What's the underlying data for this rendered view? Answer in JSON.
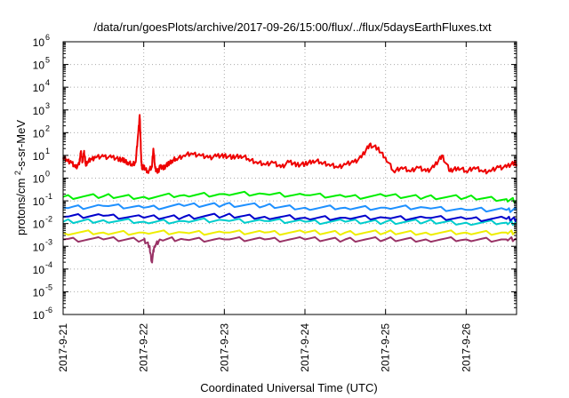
{
  "chart_data": {
    "type": "line",
    "title": "/data/run/goesPlots/archive/2017-09-26/15:00/flux/../flux/5daysEarthFluxes.txt",
    "xlabel": "Coordinated Universal Time (UTC)",
    "ylabel": "protons/cm²-s-sr-MeV",
    "y_scale": "log",
    "ylim": [
      1e-06,
      1000000.0
    ],
    "y_ticks": [
      {
        "value": 1e-06,
        "base": "10",
        "exp": "-6"
      },
      {
        "value": 1e-05,
        "base": "10",
        "exp": "-5"
      },
      {
        "value": 0.0001,
        "base": "10",
        "exp": "-4"
      },
      {
        "value": 0.001,
        "base": "10",
        "exp": "-3"
      },
      {
        "value": 0.01,
        "base": "10",
        "exp": "-2"
      },
      {
        "value": 0.1,
        "base": "10",
        "exp": "-1"
      },
      {
        "value": 1,
        "base": "10",
        "exp": "0"
      },
      {
        "value": 10,
        "base": "10",
        "exp": "1"
      },
      {
        "value": 100,
        "base": "10",
        "exp": "2"
      },
      {
        "value": 1000,
        "base": "10",
        "exp": "3"
      },
      {
        "value": 10000,
        "base": "10",
        "exp": "4"
      },
      {
        "value": 100000,
        "base": "10",
        "exp": "5"
      },
      {
        "value": 1000000,
        "base": "10",
        "exp": "6"
      }
    ],
    "xlim": [
      "2017-09-21 00:00",
      "2017-09-26 15:00"
    ],
    "x_ticks": [
      "2017-9-21",
      "2017-9-22",
      "2017-9-23",
      "2017-9-24",
      "2017-9-25",
      "2017-9-26"
    ],
    "grid": true,
    "series": [
      {
        "color": "#ee0000",
        "x": [
          0,
          0.05,
          0.1,
          0.15,
          0.2,
          0.22,
          0.24,
          0.26,
          0.28,
          0.3,
          0.35,
          0.4,
          0.5,
          0.6,
          0.7,
          0.75,
          0.8,
          0.85,
          0.9,
          0.93,
          0.95,
          0.96,
          0.97,
          0.98,
          1.0,
          1.05,
          1.1,
          1.12,
          1.14,
          1.16,
          1.18,
          1.2,
          1.25,
          1.3,
          1.35,
          1.4,
          1.5,
          1.6,
          1.7,
          1.8,
          1.9,
          2.0,
          2.1,
          2.2,
          2.3,
          2.4,
          2.5,
          2.6,
          2.7,
          2.8,
          2.9,
          3.0,
          3.1,
          3.2,
          3.3,
          3.4,
          3.5,
          3.6,
          3.7,
          3.8,
          3.9,
          4.0,
          4.1,
          4.2,
          4.3,
          4.4,
          4.5,
          4.6,
          4.7,
          4.8,
          4.9,
          5.0,
          5.1,
          5.2,
          5.3,
          5.4,
          5.5,
          5.6,
          5.625
        ],
        "y": [
          8,
          6,
          5,
          3,
          4,
          15,
          5,
          16,
          4,
          5,
          7,
          8,
          9,
          8,
          7,
          6,
          5,
          4,
          5,
          80,
          600,
          60,
          5,
          3,
          3,
          2,
          3,
          20,
          3,
          2,
          2,
          3,
          3,
          4,
          6,
          7,
          10,
          12,
          10,
          8,
          9,
          10,
          8,
          10,
          7,
          5,
          4,
          5,
          3,
          5,
          4,
          4,
          6,
          5,
          4,
          3,
          4,
          5,
          8,
          30,
          20,
          8,
          2,
          3,
          2,
          3,
          2,
          3,
          10,
          2,
          3,
          2,
          3,
          2,
          2,
          3,
          3,
          5,
          4
        ]
      },
      {
        "color": "#00ee00",
        "x": [
          0,
          0.5,
          1.0,
          1.5,
          2.0,
          2.5,
          3.0,
          3.5,
          4.0,
          4.5,
          5.0,
          5.5,
          5.625
        ],
        "y": [
          0.15,
          0.16,
          0.15,
          0.18,
          0.2,
          0.2,
          0.18,
          0.15,
          0.16,
          0.15,
          0.14,
          0.12,
          0.1
        ]
      },
      {
        "color": "#1e90ff",
        "x": [
          0,
          0.5,
          1.0,
          1.5,
          2.0,
          2.5,
          3.0,
          3.5,
          4.0,
          4.5,
          5.0,
          5.5,
          5.625
        ],
        "y": [
          0.05,
          0.06,
          0.05,
          0.06,
          0.07,
          0.06,
          0.05,
          0.05,
          0.05,
          0.05,
          0.04,
          0.04,
          0.04
        ]
      },
      {
        "color": "#00cccc",
        "x": [
          0,
          0.5,
          1.0,
          1.5,
          2.0,
          2.5,
          3.0,
          3.5,
          4.0,
          4.5,
          5.0,
          5.5,
          5.625
        ],
        "y": [
          0.012,
          0.014,
          0.012,
          0.013,
          0.014,
          0.013,
          0.012,
          0.012,
          0.012,
          0.012,
          0.011,
          0.011,
          0.011
        ]
      },
      {
        "color": "#0000cc",
        "x": [
          0,
          0.5,
          1.0,
          1.5,
          2.0,
          2.5,
          3.0,
          3.5,
          4.0,
          4.5,
          5.0,
          5.5,
          5.625
        ],
        "y": [
          0.02,
          0.022,
          0.018,
          0.02,
          0.022,
          0.02,
          0.018,
          0.018,
          0.018,
          0.018,
          0.016,
          0.016,
          0.016
        ]
      },
      {
        "color": "#eeee00",
        "x": [
          0,
          0.5,
          1.0,
          1.5,
          2.0,
          2.5,
          3.0,
          3.5,
          4.0,
          4.5,
          5.0,
          5.5,
          5.625
        ],
        "y": [
          0.004,
          0.004,
          0.004,
          0.004,
          0.004,
          0.004,
          0.004,
          0.004,
          0.004,
          0.004,
          0.004,
          0.004,
          0.004
        ]
      },
      {
        "color": "#993366",
        "x": [
          0,
          0.5,
          1.0,
          1.07,
          1.1,
          1.13,
          1.2,
          1.5,
          2.0,
          2.5,
          3.0,
          3.5,
          4.0,
          4.5,
          5.0,
          5.5,
          5.625
        ],
        "y": [
          0.002,
          0.002,
          0.002,
          0.001,
          0.0002,
          0.001,
          0.002,
          0.002,
          0.002,
          0.002,
          0.002,
          0.002,
          0.002,
          0.002,
          0.002,
          0.002,
          0.002
        ]
      }
    ]
  }
}
